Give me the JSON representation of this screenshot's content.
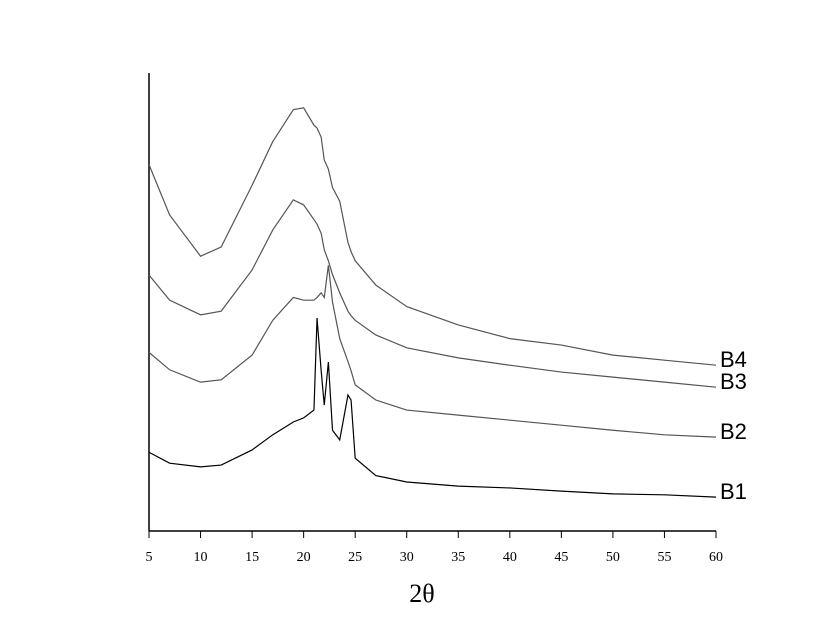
{
  "chart_data": {
    "type": "line",
    "x_label": "2θ",
    "x": [
      5,
      7,
      10,
      12,
      15,
      17,
      19,
      20,
      21,
      21.3,
      21.7,
      22,
      22.4,
      22.8,
      23.5,
      24.3,
      24.6,
      25,
      27,
      30,
      35,
      40,
      45,
      50,
      55,
      60
    ],
    "series": [
      {
        "name": "B1",
        "color": "#000000",
        "values": [
          17.2,
          14.8,
          14,
          14.4,
          17.7,
          21,
          23.8,
          24.7,
          26.4,
          46.5,
          35,
          27.5,
          36.9,
          22,
          19.9,
          29.7,
          28.6,
          15.9,
          12.1,
          10.7,
          9.8,
          9.4,
          8.7,
          8.1,
          7.9,
          7.4
        ]
      },
      {
        "name": "B2",
        "color": "#555555",
        "values": [
          39,
          35.2,
          32.5,
          33,
          38.4,
          46,
          51,
          50.4,
          50.4,
          51,
          52,
          51,
          58,
          50,
          42,
          37,
          35,
          31.9,
          28.6,
          26.4,
          25.3,
          24.2,
          23.1,
          22,
          21,
          20.5
        ]
      },
      {
        "name": "B3",
        "color": "#555555",
        "values": [
          55.9,
          50.4,
          47.2,
          48,
          57,
          65.7,
          72.3,
          71.2,
          68,
          67,
          65,
          61.4,
          59,
          56,
          52,
          48,
          47,
          46,
          42.8,
          40,
          37.8,
          36.2,
          34.7,
          33.6,
          32.5,
          31.4
        ]
      },
      {
        "name": "B4",
        "color": "#555555",
        "values": [
          80,
          69,
          60,
          62,
          75.5,
          85,
          92,
          92.4,
          88.6,
          88,
          86,
          81,
          79,
          75,
          72,
          63,
          61,
          59,
          53.7,
          49,
          45,
          42,
          40.6,
          38.4,
          37.3,
          36.2
        ]
      }
    ],
    "xlim": [
      5,
      60
    ],
    "xticks": [
      5,
      10,
      15,
      20,
      25,
      30,
      35,
      40,
      45,
      50,
      55,
      60
    ],
    "ylim": [
      0,
      100
    ]
  }
}
